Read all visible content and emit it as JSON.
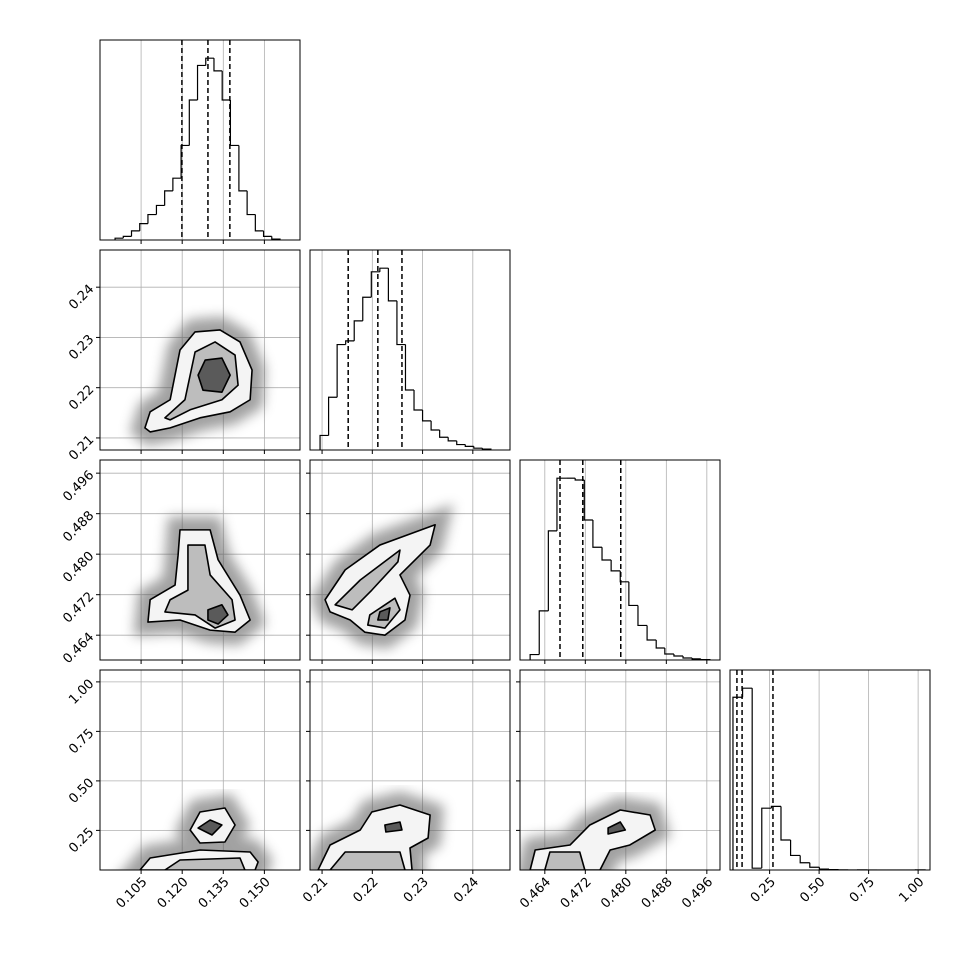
{
  "chart_data": {
    "type": "corner",
    "axes": [
      {
        "lim": [
          0.09,
          0.163
        ],
        "ticks": [
          0.105,
          {
            "value": 0.12,
            "label": "0.120"
          },
          0.135,
          {
            "value": 0.15,
            "label": "0.150"
          }
        ]
      },
      {
        "lim": [
          0.2076,
          0.2474
        ],
        "ticks": [
          0.21,
          0.22,
          0.23,
          0.24
        ]
      },
      {
        "lim": [
          0.4591,
          0.4986
        ],
        "ticks": [
          0.464,
          0.472,
          {
            "value": 0.48,
            "label": "0.480"
          },
          0.488,
          0.496
        ]
      },
      {
        "lim": [
          0.05,
          1.06
        ],
        "ticks": [
          0.25,
          {
            "value": 0.5,
            "label": "0.50"
          },
          0.75,
          {
            "value": 1,
            "label": "1.00"
          }
        ]
      }
    ],
    "histograms": [
      {
        "bins": [
          0.0955,
          0.0985,
          0.1015,
          0.1045,
          0.1075,
          0.1106,
          0.1136,
          0.1166,
          0.1196,
          0.1226,
          0.1256,
          0.1286,
          0.1316,
          0.1346,
          0.1376,
          0.1407,
          0.1437,
          0.1467,
          0.1497,
          0.1527,
          0.1557
        ],
        "counts": [
          0.01,
          0.02,
          0.05,
          0.09,
          0.14,
          0.19,
          0.27,
          0.34,
          0.52,
          0.77,
          0.96,
          1.0,
          0.93,
          0.77,
          0.52,
          0.27,
          0.14,
          0.05,
          0.02,
          0.005
        ],
        "ylim": [
          0,
          1.1
        ],
        "quantiles": [
          0.1199,
          0.1294,
          0.1374
        ]
      },
      {
        "bins": [
          0.2096,
          0.2113,
          0.213,
          0.2147,
          0.2164,
          0.2181,
          0.2198,
          0.2215,
          0.2232,
          0.2249,
          0.2266,
          0.2283,
          0.23,
          0.2317,
          0.2334,
          0.2351,
          0.2368,
          0.2385,
          0.2402,
          0.2419,
          0.2436
        ],
        "counts": [
          0.08,
          0.29,
          0.58,
          0.6,
          0.71,
          0.84,
          0.98,
          1.0,
          0.82,
          0.58,
          0.33,
          0.22,
          0.16,
          0.11,
          0.07,
          0.05,
          0.03,
          0.02,
          0.01,
          0.005
        ],
        "ylim": [
          0,
          1.1
        ],
        "quantiles": [
          0.2152,
          0.2211,
          0.2259
        ]
      },
      {
        "bins": [
          0.4611,
          0.4629,
          0.4647,
          0.4664,
          0.4682,
          0.47,
          0.4718,
          0.4735,
          0.4753,
          0.4771,
          0.4789,
          0.4806,
          0.4824,
          0.4842,
          0.486,
          0.4877,
          0.4895,
          0.4913,
          0.4931,
          0.4948,
          0.4966
        ],
        "counts": [
          0.03,
          0.27,
          0.71,
          1.0,
          1.0,
          0.99,
          0.77,
          0.62,
          0.55,
          0.49,
          0.43,
          0.3,
          0.19,
          0.11,
          0.066,
          0.033,
          0.022,
          0.011,
          0.006,
          0.002
        ],
        "ylim": [
          0,
          1.1
        ],
        "quantiles": [
          0.467,
          0.4715,
          0.479
        ]
      },
      {
        "bins": [
          0.065,
          0.1135,
          0.162,
          0.2105,
          0.259,
          0.3075,
          0.356,
          0.4045,
          0.453,
          0.5015,
          0.55,
          0.5985,
          0.647,
          0.6955,
          0.744,
          0.7925,
          0.841,
          0.8895,
          0.938,
          0.9865,
          1.035
        ],
        "counts": [
          0.95,
          1.0,
          0.01,
          0.34,
          0.35,
          0.165,
          0.08,
          0.04,
          0.015,
          0.005,
          0.002,
          0.001,
          0,
          0.001,
          0,
          0,
          0,
          0,
          0,
          0.001
        ],
        "ylim": [
          0,
          1.1
        ],
        "quantiles": [
          0.085,
          0.111,
          0.267
        ]
      }
    ],
    "panels": [
      {
        "contours": [
          [
            {
              "x": [
                0.1064,
                0.1083,
                0.1156,
                0.1192,
                0.1247,
                0.1338,
                0.1411,
                0.1455,
                0.1448,
                0.1375,
                0.1265,
                0.1156,
                0.1083
              ],
              "y": [
                0.212,
                0.2152,
                0.2176,
                0.2275,
                0.2311,
                0.2315,
                0.2291,
                0.2235,
                0.2176,
                0.2152,
                0.214,
                0.212,
                0.2112
              ]
            }
          ],
          [
            {
              "x": [
                0.1137,
                0.121,
                0.1247,
                0.132,
                0.1393,
                0.1404,
                0.1345,
                0.1229,
                0.1156
              ],
              "y": [
                0.214,
                0.2176,
                0.2271,
                0.2291,
                0.2265,
                0.2205,
                0.2176,
                0.2156,
                0.2136
              ]
            }
          ],
          [
            {
              "x": [
                0.1258,
                0.1284,
                0.1345,
                0.1375,
                0.1345,
                0.1276
              ],
              "y": [
                0.2225,
                0.2255,
                0.2259,
                0.2225,
                0.2191,
                0.2195
              ]
            }
          ]
        ]
      },
      {
        "contours": [
          [
            {
              "x": [
                0.1192,
                0.1302,
                0.1331,
                0.1411,
                0.1448,
                0.1393,
                0.1302,
                0.1192,
                0.1075,
                0.1083,
                0.1174,
                0.1185
              ],
              "y": [
                0.4848,
                0.4848,
                0.4789,
                0.4719,
                0.467,
                0.4646,
                0.465,
                0.467,
                0.4666,
                0.471,
                0.4739,
                0.4798
              ]
            }
          ],
          [
            {
              "x": [
                0.1221,
                0.1283,
                0.1302,
                0.1382,
                0.1393,
                0.132,
                0.1247,
                0.1137,
                0.1156,
                0.1221
              ],
              "y": [
                0.4818,
                0.4818,
                0.4759,
                0.471,
                0.467,
                0.4654,
                0.468,
                0.4686,
                0.471,
                0.4729
              ]
            }
          ],
          [
            {
              "x": [
                0.1294,
                0.1345,
                0.1367,
                0.1331,
                0.1294
              ],
              "y": [
                0.469,
                0.47,
                0.468,
                0.4662,
                0.467
              ]
            }
          ]
        ]
      },
      {
        "contours": [
          [
            {
              "x": [
                0.2106,
                0.2146,
                0.2215,
                0.2325,
                0.2315,
                0.2255,
                0.2275,
                0.2265,
                0.2225,
                0.2185,
                0.2156,
                0.2116
              ],
              "y": [
                0.471,
                0.4769,
                0.4818,
                0.4858,
                0.4818,
                0.4759,
                0.4719,
                0.467,
                0.464,
                0.4646,
                0.467,
                0.4686
              ]
            }
          ],
          [
            {
              "x": [
                0.2126,
                0.2176,
                0.2255,
                0.2251,
                0.2199,
                0.216
              ],
              "y": [
                0.47,
                0.4749,
                0.4808,
                0.4785,
                0.4729,
                0.469
              ]
            },
            {
              "x": [
                0.2195,
                0.2245,
                0.2255,
                0.2225,
                0.2191
              ],
              "y": [
                0.468,
                0.4713,
                0.469,
                0.4654,
                0.466
              ]
            }
          ],
          [
            {
              "x": [
                0.2215,
                0.2235,
                0.2231,
                0.2211
              ],
              "y": [
                0.4686,
                0.4694,
                0.467,
                0.467
              ]
            }
          ]
        ]
      },
      {
        "contours": [
          [
            {
              "x": [
                0.1046,
                0.1083,
                0.1265,
                0.1448,
                0.1477,
                0.1466
              ],
              "y": [
                0.05,
                0.1106,
                0.151,
                0.1409,
                0.0904,
                0.05
              ]
            },
            {
              "x": [
                0.1229,
                0.1265,
                0.1356,
                0.1393,
                0.1356,
                0.1265
              ],
              "y": [
                0.252,
                0.3429,
                0.3631,
                0.2773,
                0.1914,
                0.1864
              ]
            }
          ],
          [
            {
              "x": [
                0.1137,
                0.1192,
                0.1411,
                0.1429
              ],
              "y": [
                0.05,
                0.1005,
                0.1106,
                0.05
              ]
            }
          ],
          [
            {
              "x": [
                0.1258,
                0.1302,
                0.1345,
                0.1309
              ],
              "y": [
                0.2621,
                0.3025,
                0.2773,
                0.2268
              ]
            }
          ]
        ]
      },
      {
        "contours": [
          [
            {
              "x": [
                0.2092,
                0.2116,
                0.2176,
                0.2199,
                0.2255,
                0.2315,
                0.2311,
                0.2275,
                0.2279
              ],
              "y": [
                0.05,
                0.1763,
                0.252,
                0.3429,
                0.3783,
                0.3278,
                0.2116,
                0.1611,
                0.05
              ]
            }
          ],
          [
            {
              "x": [
                0.2116,
                0.2146,
                0.2255,
                0.2265
              ],
              "y": [
                0.05,
                0.1409,
                0.1409,
                0.05
              ]
            }
          ],
          [
            {
              "x": [
                0.2225,
                0.2255,
                0.2259,
                0.2227
              ],
              "y": [
                0.2773,
                0.2924,
                0.252,
                0.2419
              ]
            }
          ]
        ]
      },
      {
        "contours": [
          [
            {
              "x": [
                0.4611,
                0.4621,
                0.469,
                0.4729,
                0.4789,
                0.4848,
                0.4858,
                0.4808,
                0.4769,
                0.4749
              ],
              "y": [
                0.05,
                0.151,
                0.1763,
                0.2773,
                0.353,
                0.3278,
                0.252,
                0.1763,
                0.151,
                0.05
              ]
            }
          ],
          [
            {
              "x": [
                0.464,
                0.465,
                0.4709,
                0.4719
              ],
              "y": [
                0.05,
                0.1409,
                0.1409,
                0.05
              ]
            }
          ],
          [
            {
              "x": [
                0.4765,
                0.4789,
                0.4799,
                0.4765
              ],
              "y": [
                0.2621,
                0.2924,
                0.252,
                0.2318
              ]
            }
          ]
        ]
      }
    ]
  }
}
